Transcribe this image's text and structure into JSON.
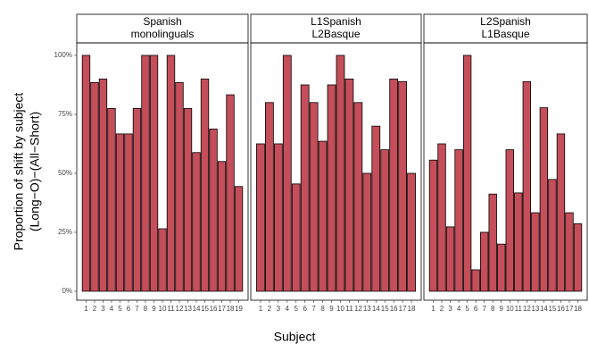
{
  "chart_data": [
    {
      "type": "bar",
      "title": [
        "Spanish",
        "monolinguals"
      ],
      "ylabel": [
        "Proportion of shift by subject",
        "(Long−O)−(All−Short)"
      ],
      "xlabel": "Subject",
      "categories": [
        "1",
        "2",
        "3",
        "4",
        "5",
        "6",
        "7",
        "8",
        "9",
        "10",
        "11",
        "12",
        "13",
        "14",
        "15",
        "16",
        "17",
        "18",
        "19"
      ],
      "values": [
        100,
        88.5,
        90,
        77.5,
        66.7,
        66.7,
        77.5,
        100,
        100,
        26.5,
        100,
        88.5,
        77.5,
        58.8,
        90,
        68.8,
        55,
        83.3,
        44.4
      ],
      "color": "#c44e5a",
      "ylim": [
        -3.8,
        105.3
      ],
      "yticks": [
        {
          "value": 0,
          "label": "0%"
        },
        {
          "value": 25,
          "label": "25%"
        },
        {
          "value": 50,
          "label": "50%"
        },
        {
          "value": 75,
          "label": "75%"
        },
        {
          "value": 100,
          "label": "100%"
        }
      ]
    },
    {
      "type": "bar",
      "title": [
        "L1Spanish",
        "L2Basque"
      ],
      "categories": [
        "1",
        "2",
        "3",
        "4",
        "5",
        "6",
        "7",
        "8",
        "9",
        "10",
        "11",
        "12",
        "13",
        "14",
        "15",
        "16",
        "17",
        "18"
      ],
      "values": [
        62.5,
        80,
        62.5,
        100,
        45.5,
        87.5,
        80,
        63.6,
        87.5,
        100,
        90,
        80,
        50,
        70,
        60,
        90,
        88.9,
        50
      ],
      "color": "#c44e5a",
      "ylim": [
        -3.8,
        105.3
      ]
    },
    {
      "type": "bar",
      "title": [
        "L2Spanish",
        "L1Basque"
      ],
      "categories": [
        "1",
        "2",
        "3",
        "4",
        "5",
        "6",
        "7",
        "8",
        "9",
        "10",
        "11",
        "12",
        "13",
        "14",
        "15",
        "16",
        "17",
        "18"
      ],
      "values": [
        55.6,
        62.5,
        27.3,
        60,
        100,
        9.1,
        25,
        41.2,
        20,
        60,
        41.7,
        88.9,
        33.3,
        77.8,
        47.4,
        66.7,
        33.3,
        28.6
      ],
      "color": "#c44e5a",
      "ylim": [
        -3.8,
        105.3
      ]
    }
  ]
}
